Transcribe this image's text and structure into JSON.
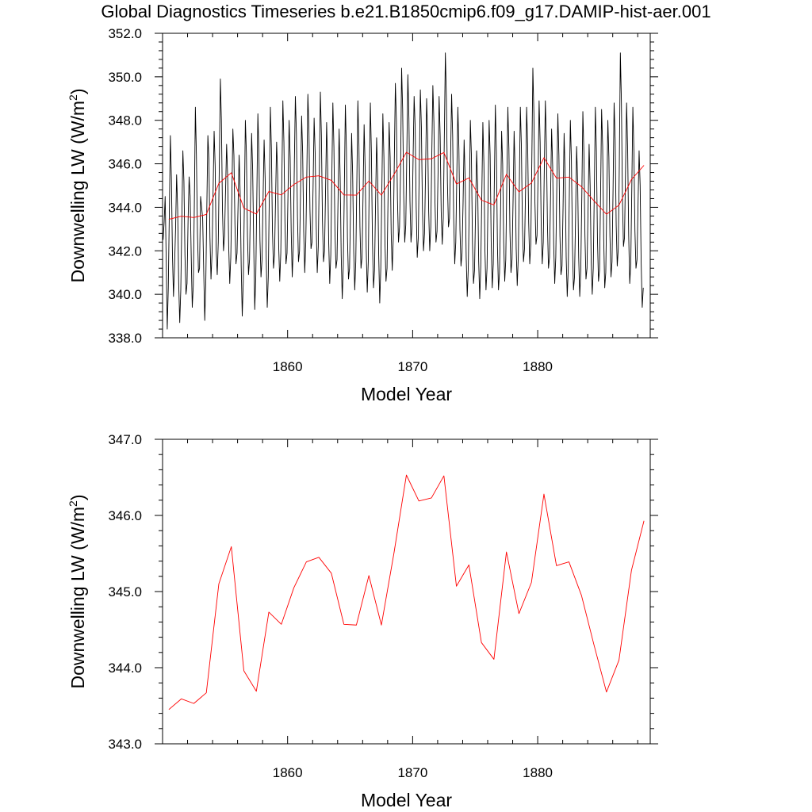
{
  "title": "Global Diagnostics Timeseries b.e21.B1850cmip6.f09_g17.DAMIP-hist-aer.001",
  "chart_data": [
    {
      "type": "line",
      "xlabel": "Model Year",
      "ylabel": "Downwelling LW (W/m",
      "ylabel_sup": "2",
      "ylabel_close": ")",
      "xlim": [
        1850.0,
        1889.0
      ],
      "ylim": [
        338.0,
        352.0
      ],
      "xticks": [
        1860,
        1870,
        1880
      ],
      "xtick_labels": [
        "1860",
        "1870",
        "1880"
      ],
      "yticks": [
        338,
        340,
        342,
        344,
        346,
        348,
        350,
        352
      ],
      "ytick_labels": [
        "338.0",
        "340.0",
        "342.0",
        "344.0",
        "346.0",
        "348.0",
        "350.0",
        "352.0"
      ],
      "series": [
        {
          "color": "#000000",
          "x_start": 1850.0417,
          "x_step": 0.0833,
          "values": [
            342.5,
            343.3,
            344.5,
            341.6,
            338.4,
            340.3,
            343.8,
            347.3,
            345.3,
            341.8,
            339.9,
            341.3,
            343.0,
            345.5,
            343.9,
            340.5,
            338.7,
            340.2,
            343.4,
            346.6,
            345.2,
            341.8,
            340.0,
            340.5,
            343.4,
            345.4,
            344.5,
            341.8,
            339.4,
            340.4,
            344.1,
            348.6,
            346.4,
            342.8,
            341.0,
            341.2,
            344.5,
            344.0,
            343.5,
            341.1,
            338.8,
            340.5,
            344.0,
            347.3,
            346.2,
            342.6,
            340.7,
            341.9,
            344.7,
            347.5,
            345.9,
            342.0,
            340.9,
            342.4,
            346.0,
            349.9,
            348.0,
            343.9,
            342.0,
            342.7,
            344.8,
            346.9,
            345.4,
            342.2,
            340.5,
            341.7,
            344.4,
            347.6,
            346.4,
            343.2,
            341.4,
            341.9,
            344.1,
            346.4,
            344.7,
            341.3,
            339.0,
            340.6,
            344.0,
            348.0,
            346.5,
            342.7,
            340.9,
            341.6,
            344.5,
            347.4,
            345.7,
            342.3,
            339.3,
            340.8,
            344.5,
            348.3,
            346.5,
            342.5,
            340.8,
            341.6,
            344.4,
            347.1,
            345.3,
            341.7,
            339.4,
            340.8,
            344.6,
            348.6,
            346.7,
            342.9,
            341.2,
            341.8,
            344.4,
            347.0,
            345.5,
            342.2,
            340.6,
            341.9,
            345.2,
            348.9,
            347.0,
            343.3,
            341.4,
            341.9,
            344.8,
            348.0,
            346.3,
            342.9,
            340.8,
            342.2,
            345.9,
            349.1,
            347.4,
            343.6,
            341.5,
            342.0,
            344.8,
            348.2,
            346.5,
            342.9,
            341.0,
            342.4,
            345.5,
            349.2,
            347.6,
            343.9,
            342.1,
            342.4,
            344.9,
            348.1,
            346.5,
            343.2,
            341.0,
            342.2,
            345.6,
            349.3,
            347.3,
            343.4,
            341.5,
            342.0,
            344.8,
            347.9,
            345.8,
            342.4,
            340.5,
            341.8,
            345.4,
            348.8,
            346.8,
            342.9,
            341.2,
            341.6,
            344.4,
            347.6,
            345.4,
            341.8,
            339.8,
            341.3,
            344.8,
            348.7,
            346.7,
            342.6,
            340.7,
            341.2,
            344.0,
            347.4,
            345.5,
            342.0,
            340.2,
            341.5,
            345.1,
            348.9,
            346.9,
            343.1,
            341.2,
            341.7,
            344.6,
            347.8,
            345.8,
            342.1,
            340.1,
            341.5,
            345.4,
            348.8,
            346.5,
            342.4,
            340.3,
            341.1,
            344.2,
            347.2,
            345.4,
            341.8,
            339.6,
            341.2,
            344.7,
            348.3,
            346.3,
            342.4,
            340.6,
            341.2,
            344.5,
            347.9,
            346.3,
            342.8,
            341.1,
            342.6,
            346.2,
            349.7,
            348.0,
            344.4,
            342.4,
            343.1,
            345.7,
            350.4,
            348.5,
            344.6,
            342.4,
            343.2,
            346.5,
            350.1,
            348.1,
            344.3,
            342.4,
            343.1,
            346.2,
            349.1,
            347.7,
            344.0,
            341.7,
            342.6,
            346.0,
            349.4,
            347.7,
            343.9,
            342.0,
            342.8,
            345.6,
            349.0,
            347.3,
            343.8,
            342.0,
            343.1,
            346.5,
            349.6,
            347.9,
            344.3,
            342.4,
            342.9,
            345.6,
            349.1,
            347.3,
            343.8,
            342.3,
            343.5,
            347.2,
            351.1,
            349.0,
            345.1,
            343.1,
            343.5,
            346.2,
            349.2,
            347.3,
            343.5,
            341.4,
            342.4,
            345.5,
            348.6,
            346.7,
            343.0,
            341.3,
            341.9,
            344.2,
            347.1,
            345.3,
            341.7,
            339.9,
            341.2,
            344.2,
            348.0,
            346.4,
            342.4,
            340.5,
            341.1,
            343.8,
            346.6,
            345.0,
            341.5,
            339.8,
            341.3,
            344.6,
            347.9,
            346.0,
            342.0,
            340.2,
            341.2,
            344.4,
            348.0,
            346.4,
            342.4,
            340.3,
            341.4,
            345.1,
            348.7,
            346.5,
            342.2,
            340.2,
            341.0,
            343.8,
            347.5,
            346.0,
            342.4,
            340.6,
            341.6,
            345.2,
            348.6,
            346.7,
            342.9,
            341.0,
            341.6,
            344.3,
            347.5,
            345.6,
            342.1,
            340.4,
            341.7,
            345.0,
            348.6,
            346.8,
            343.1,
            341.5,
            342.1,
            344.8,
            348.6,
            346.9,
            343.3,
            341.4,
            342.3,
            346.1,
            350.4,
            348.3,
            344.2,
            342.3,
            342.7,
            345.4,
            348.9,
            347.0,
            343.2,
            341.4,
            342.4,
            345.8,
            348.9,
            346.9,
            343.2,
            341.2,
            341.7,
            344.5,
            347.6,
            345.9,
            342.3,
            340.5,
            341.7,
            345.0,
            348.3,
            346.4,
            342.7,
            340.9,
            341.3,
            344.0,
            347.4,
            345.4,
            341.7,
            339.9,
            341.2,
            344.5,
            348.0,
            346.2,
            342.3,
            340.2,
            340.8,
            343.5,
            346.8,
            345.2,
            341.7,
            339.9,
            341.1,
            344.5,
            348.4,
            346.5,
            342.7,
            340.7,
            341.2,
            343.9,
            346.9,
            345.0,
            341.5,
            340.0,
            341.2,
            344.8,
            348.6,
            346.6,
            342.6,
            340.6,
            341.1,
            344.5,
            348.5,
            346.8,
            342.6,
            340.3,
            341.0,
            344.3,
            348.0,
            346.3,
            342.7,
            340.8,
            341.5,
            344.8,
            348.8,
            347.1,
            343.2,
            341.3,
            342.1,
            345.9,
            351.1,
            348.9,
            344.4,
            342.2,
            342.6,
            345.8,
            348.8,
            346.7,
            342.7,
            340.5,
            341.4,
            344.9,
            348.6,
            346.6,
            342.9,
            341.2,
            341.6,
            344.2,
            346.6,
            345.0,
            341.4,
            339.4,
            340.3
          ]
        },
        {
          "color": "#ff0000",
          "x": [
            1850.5,
            1851.5,
            1852.5,
            1853.5,
            1854.5,
            1855.5,
            1856.5,
            1857.5,
            1858.5,
            1859.5,
            1860.5,
            1861.5,
            1862.5,
            1863.5,
            1864.5,
            1865.5,
            1866.5,
            1867.5,
            1868.5,
            1869.5,
            1870.5,
            1871.5,
            1872.5,
            1873.5,
            1874.5,
            1875.5,
            1876.5,
            1877.5,
            1878.5,
            1879.5,
            1880.5,
            1881.5,
            1882.5,
            1883.5,
            1884.5,
            1885.5,
            1886.5,
            1887.5,
            1888.5
          ],
          "values": [
            343.45,
            343.59,
            343.53,
            343.67,
            345.1,
            345.59,
            343.96,
            343.69,
            344.73,
            344.57,
            345.05,
            345.39,
            345.45,
            345.24,
            344.57,
            344.56,
            345.21,
            344.56,
            345.5,
            346.53,
            346.19,
            346.23,
            346.52,
            345.07,
            345.35,
            344.33,
            344.11,
            345.52,
            344.71,
            345.12,
            346.28,
            345.34,
            345.39,
            344.95,
            344.3,
            343.68,
            344.1,
            345.28,
            345.93
          ]
        }
      ]
    },
    {
      "type": "line",
      "xlabel": "Model Year",
      "ylabel": "Downwelling LW (W/m",
      "ylabel_sup": "2",
      "ylabel_close": ")",
      "xlim": [
        1850.0,
        1889.0
      ],
      "ylim": [
        343.0,
        347.0
      ],
      "xticks": [
        1860,
        1870,
        1880
      ],
      "xtick_labels": [
        "1860",
        "1870",
        "1880"
      ],
      "yticks": [
        343,
        344,
        345,
        346,
        347
      ],
      "ytick_labels": [
        "343.0",
        "344.0",
        "345.0",
        "346.0",
        "347.0"
      ],
      "series": [
        {
          "color": "#ff0000",
          "x": [
            1850.5,
            1851.5,
            1852.5,
            1853.5,
            1854.5,
            1855.5,
            1856.5,
            1857.5,
            1858.5,
            1859.5,
            1860.5,
            1861.5,
            1862.5,
            1863.5,
            1864.5,
            1865.5,
            1866.5,
            1867.5,
            1868.5,
            1869.5,
            1870.5,
            1871.5,
            1872.5,
            1873.5,
            1874.5,
            1875.5,
            1876.5,
            1877.5,
            1878.5,
            1879.5,
            1880.5,
            1881.5,
            1882.5,
            1883.5,
            1884.5,
            1885.5,
            1886.5,
            1887.5,
            1888.5
          ],
          "values": [
            343.45,
            343.59,
            343.53,
            343.67,
            345.1,
            345.59,
            343.96,
            343.69,
            344.73,
            344.57,
            345.05,
            345.39,
            345.45,
            345.24,
            344.57,
            344.56,
            345.21,
            344.56,
            345.5,
            346.53,
            346.19,
            346.23,
            346.52,
            345.07,
            345.35,
            344.33,
            344.11,
            345.52,
            344.71,
            345.12,
            346.28,
            345.34,
            345.39,
            344.95,
            344.3,
            343.68,
            344.1,
            345.28,
            345.93
          ]
        }
      ]
    }
  ]
}
